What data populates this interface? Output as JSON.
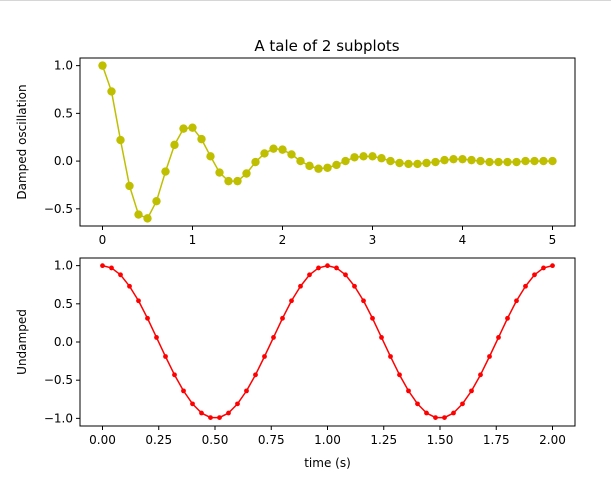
{
  "figure": {
    "title": "A tale of 2 subplots"
  },
  "chart_data": [
    {
      "type": "line",
      "title": "A tale of 2 subplots",
      "xlabel": "",
      "ylabel": "Damped oscillation",
      "xlim": [
        -0.25,
        5.25
      ],
      "ylim": [
        -0.68,
        1.08
      ],
      "xticks": [
        "0",
        "1",
        "2",
        "3",
        "4",
        "5"
      ],
      "yticks": [
        "−0.5",
        "0.0",
        "0.5",
        "1.0"
      ],
      "grid": false,
      "color": "#bfbf00",
      "marker": "circle",
      "series": [
        {
          "x": [
            0.0,
            0.1,
            0.2,
            0.3,
            0.4,
            0.5,
            0.6,
            0.7,
            0.8,
            0.9,
            1.0,
            1.1,
            1.2,
            1.3,
            1.4,
            1.5,
            1.6,
            1.7,
            1.8,
            1.9,
            2.0,
            2.1,
            2.2,
            2.3,
            2.4,
            2.5,
            2.6,
            2.7,
            2.8,
            2.9,
            3.0,
            3.1,
            3.2,
            3.3,
            3.4,
            3.5,
            3.6,
            3.7,
            3.8,
            3.9,
            4.0,
            4.1,
            4.2,
            4.3,
            4.4,
            4.5,
            4.6,
            4.7,
            4.8,
            4.9,
            5.0
          ],
          "y": [
            1.0,
            0.73,
            0.22,
            -0.26,
            -0.56,
            -0.6,
            -0.42,
            -0.11,
            0.17,
            0.34,
            0.35,
            0.23,
            0.05,
            -0.12,
            -0.21,
            -0.21,
            -0.13,
            -0.01,
            0.08,
            0.13,
            0.12,
            0.07,
            0.0,
            -0.05,
            -0.08,
            -0.07,
            -0.04,
            0.0,
            0.04,
            0.05,
            0.05,
            0.03,
            0.0,
            -0.02,
            -0.03,
            -0.03,
            -0.02,
            -0.01,
            0.01,
            0.02,
            0.02,
            0.01,
            0.0,
            -0.01,
            -0.01,
            -0.01,
            -0.01,
            0.0,
            0.0,
            0.0,
            0.0
          ]
        }
      ]
    },
    {
      "type": "line",
      "title": "",
      "xlabel": "time (s)",
      "ylabel": "Undamped",
      "xlim": [
        -0.1,
        2.1
      ],
      "ylim": [
        -1.1,
        1.1
      ],
      "xticks": [
        "0.00",
        "0.25",
        "0.50",
        "0.75",
        "1.00",
        "1.25",
        "1.50",
        "1.75",
        "2.00"
      ],
      "yticks": [
        "−1.0",
        "−0.5",
        "0.0",
        "0.5",
        "1.0"
      ],
      "grid": false,
      "color": "#ff0000",
      "marker": "dot",
      "series": [
        {
          "x": [
            0.0,
            0.04,
            0.08,
            0.12,
            0.16,
            0.2,
            0.24,
            0.28,
            0.32,
            0.36,
            0.4,
            0.44,
            0.48,
            0.52,
            0.56,
            0.6,
            0.64,
            0.68,
            0.72,
            0.76,
            0.8,
            0.84,
            0.88,
            0.92,
            0.96,
            1.0,
            1.04,
            1.08,
            1.12,
            1.16,
            1.2,
            1.24,
            1.28,
            1.32,
            1.36,
            1.4,
            1.44,
            1.48,
            1.52,
            1.56,
            1.6,
            1.64,
            1.68,
            1.72,
            1.76,
            1.8,
            1.84,
            1.88,
            1.92,
            1.96,
            2.0
          ],
          "y": [
            1.0,
            0.97,
            0.88,
            0.73,
            0.54,
            0.31,
            0.06,
            -0.19,
            -0.43,
            -0.64,
            -0.81,
            -0.93,
            -0.99,
            -0.99,
            -0.93,
            -0.81,
            -0.64,
            -0.43,
            -0.19,
            0.06,
            0.31,
            0.54,
            0.73,
            0.88,
            0.97,
            1.0,
            0.97,
            0.88,
            0.73,
            0.54,
            0.31,
            0.06,
            -0.19,
            -0.43,
            -0.64,
            -0.81,
            -0.93,
            -0.99,
            -0.99,
            -0.93,
            -0.81,
            -0.64,
            -0.43,
            -0.19,
            0.06,
            0.31,
            0.54,
            0.73,
            0.88,
            0.97,
            1.0
          ]
        }
      ]
    }
  ]
}
